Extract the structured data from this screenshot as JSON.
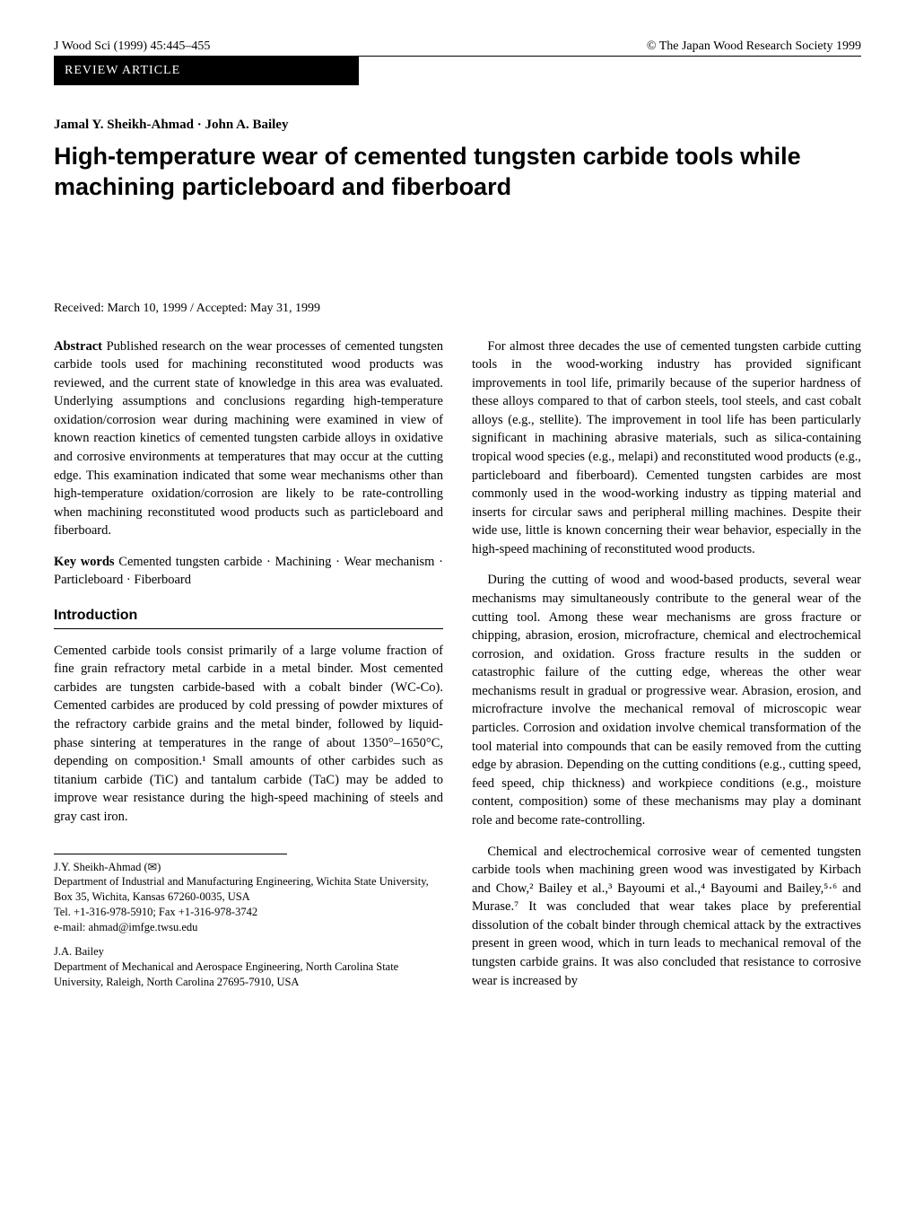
{
  "header": {
    "journal_ref": "J Wood Sci (1999) 45:445–455",
    "copyright": "© The Japan Wood Research Society 1999",
    "badge": "REVIEW ARTICLE"
  },
  "authors": "Jamal Y. Sheikh-Ahmad · John A. Bailey",
  "title": "High-temperature wear of cemented tungsten carbide tools while machining particleboard and fiberboard",
  "received": "Received: March 10, 1999 / Accepted: May 31, 1999",
  "abstract": {
    "label": "Abstract",
    "text": " Published research on the wear processes of cemented tungsten carbide tools used for machining reconstituted wood products was reviewed, and the current state of knowledge in this area was evaluated. Underlying assumptions and conclusions regarding high-temperature oxidation/corrosion wear during machining were examined in view of known reaction kinetics of cemented tungsten carbide alloys in oxidative and corrosive environments at temperatures that may occur at the cutting edge. This examination indicated that some wear mechanisms other than high-temperature oxidation/corrosion are likely to be rate-controlling when machining reconstituted wood products such as particleboard and fiberboard."
  },
  "keywords": {
    "label": "Key words",
    "text": " Cemented tungsten carbide · Machining · Wear mechanism · Particleboard · Fiberboard"
  },
  "introduction": {
    "heading": "Introduction",
    "para1": "Cemented carbide tools consist primarily of a large volume fraction of fine grain refractory metal carbide in a metal binder. Most cemented carbides are tungsten carbide-based with a cobalt binder (WC-Co). Cemented carbides are produced by cold pressing of powder mixtures of the refractory carbide grains and the metal binder, followed by liquid-phase sintering at temperatures in the range of about 1350°–1650°C, depending on composition.¹ Small amounts of other carbides such as titanium carbide (TiC) and tantalum carbide (TaC) may be added to improve wear resistance during the high-speed machining of steels and gray cast iron."
  },
  "footnotes": {
    "author1_name": "J.Y. Sheikh-Ahmad (✉)",
    "author1_affil": "Department of Industrial and Manufacturing Engineering, Wichita State University, Box 35, Wichita, Kansas 67260-0035, USA",
    "author1_contact": "Tel. +1-316-978-5910; Fax +1-316-978-3742",
    "author1_email": "e-mail: ahmad@imfge.twsu.edu",
    "author2_name": "J.A. Bailey",
    "author2_affil": "Department of Mechanical and Aerospace Engineering, North Carolina State University, Raleigh, North Carolina 27695-7910, USA"
  },
  "right_col": {
    "para1": "For almost three decades the use of cemented tungsten carbide cutting tools in the wood-working industry has provided significant improvements in tool life, primarily because of the superior hardness of these alloys compared to that of carbon steels, tool steels, and cast cobalt alloys (e.g., stellite). The improvement in tool life has been particularly significant in machining abrasive materials, such as silica-containing tropical wood species (e.g., melapi) and reconstituted wood products (e.g., particleboard and fiberboard). Cemented tungsten carbides are most commonly used in the wood-working industry as tipping material and inserts for circular saws and peripheral milling machines. Despite their wide use, little is known concerning their wear behavior, especially in the high-speed machining of reconstituted wood products.",
    "para2": "During the cutting of wood and wood-based products, several wear mechanisms may simultaneously contribute to the general wear of the cutting tool. Among these wear mechanisms are gross fracture or chipping, abrasion, erosion, microfracture, chemical and electrochemical corrosion, and oxidation. Gross fracture results in the sudden or catastrophic failure of the cutting edge, whereas the other wear mechanisms result in gradual or progressive wear. Abrasion, erosion, and microfracture involve the mechanical removal of microscopic wear particles. Corrosion and oxidation involve chemical transformation of the tool material into compounds that can be easily removed from the cutting edge by abrasion. Depending on the cutting conditions (e.g., cutting speed, feed speed, chip thickness) and workpiece conditions (e.g., moisture content, composition) some of these mechanisms may play a dominant role and become rate-controlling.",
    "para3": "Chemical and electrochemical corrosive wear of cemented tungsten carbide tools when machining green wood was investigated by Kirbach and Chow,² Bailey et al.,³ Bayoumi et al.,⁴ Bayoumi and Bailey,⁵·⁶ and Murase.⁷ It was concluded that wear takes place by preferential dissolution of the cobalt binder through chemical attack by the extractives present in green wood, which in turn leads to mechanical removal of the tungsten carbide grains. It was also concluded that resistance to corrosive wear is increased by"
  }
}
